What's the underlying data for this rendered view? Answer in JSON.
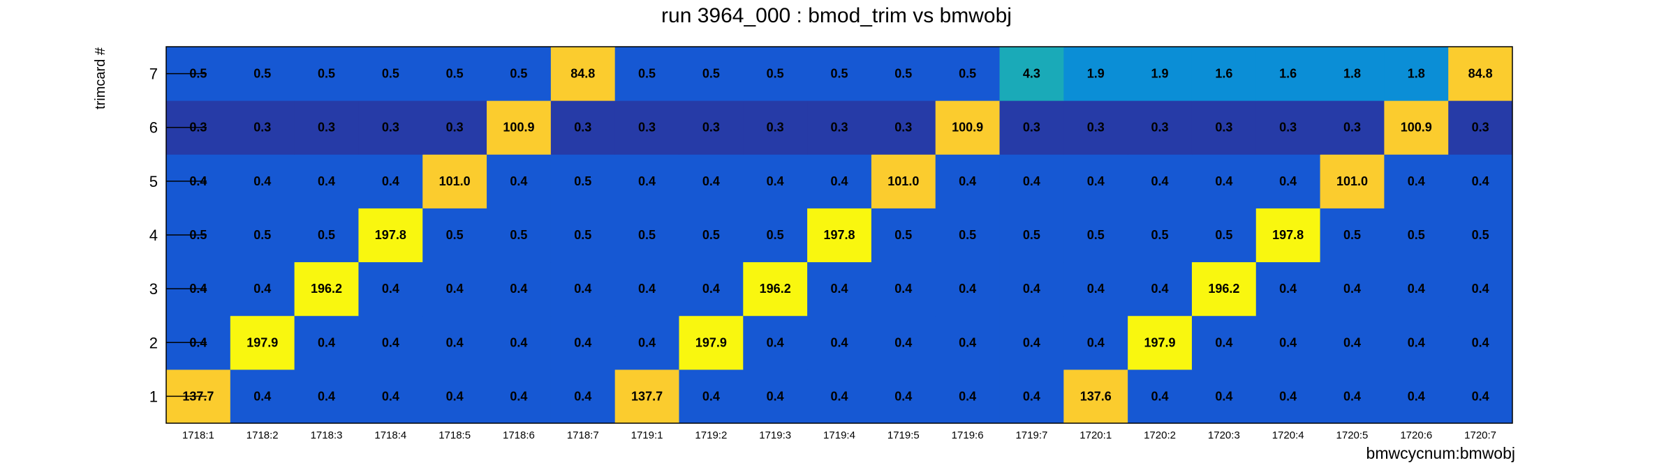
{
  "chart_data": {
    "type": "heatmap",
    "title": "run 3964_000 : bmod_trim vs bmwobj",
    "xlabel": "bmwcycnum:bmwobj",
    "ylabel": "trimcard #",
    "x": [
      "1718:1",
      "1718:2",
      "1718:3",
      "1718:4",
      "1718:5",
      "1718:6",
      "1718:7",
      "1719:1",
      "1719:2",
      "1719:3",
      "1719:4",
      "1719:5",
      "1719:6",
      "1719:7",
      "1720:1",
      "1720:2",
      "1720:3",
      "1720:4",
      "1720:5",
      "1720:6",
      "1720:7"
    ],
    "y": [
      "1",
      "2",
      "3",
      "4",
      "5",
      "6",
      "7"
    ],
    "values": [
      [
        137.7,
        0.4,
        0.4,
        0.4,
        0.4,
        0.4,
        0.4,
        137.7,
        0.4,
        0.4,
        0.4,
        0.4,
        0.4,
        0.4,
        137.6,
        0.4,
        0.4,
        0.4,
        0.4,
        0.4,
        0.4
      ],
      [
        0.4,
        197.9,
        0.4,
        0.4,
        0.4,
        0.4,
        0.4,
        0.4,
        197.9,
        0.4,
        0.4,
        0.4,
        0.4,
        0.4,
        0.4,
        197.9,
        0.4,
        0.4,
        0.4,
        0.4,
        0.4
      ],
      [
        0.4,
        0.4,
        196.2,
        0.4,
        0.4,
        0.4,
        0.4,
        0.4,
        0.4,
        196.2,
        0.4,
        0.4,
        0.4,
        0.4,
        0.4,
        0.4,
        196.2,
        0.4,
        0.4,
        0.4,
        0.4
      ],
      [
        0.5,
        0.5,
        0.5,
        197.8,
        0.5,
        0.5,
        0.5,
        0.5,
        0.5,
        0.5,
        197.8,
        0.5,
        0.5,
        0.5,
        0.5,
        0.5,
        0.5,
        197.8,
        0.5,
        0.5,
        0.5
      ],
      [
        0.4,
        0.4,
        0.4,
        0.4,
        101.0,
        0.4,
        0.5,
        0.4,
        0.4,
        0.4,
        0.4,
        101.0,
        0.4,
        0.4,
        0.4,
        0.4,
        0.4,
        0.4,
        101.0,
        0.4,
        0.4
      ],
      [
        0.3,
        0.3,
        0.3,
        0.3,
        0.3,
        100.9,
        0.3,
        0.3,
        0.3,
        0.3,
        0.3,
        0.3,
        100.9,
        0.3,
        0.3,
        0.3,
        0.3,
        0.3,
        0.3,
        100.9,
        0.3
      ],
      [
        0.5,
        0.5,
        0.5,
        0.5,
        0.5,
        0.5,
        84.8,
        0.5,
        0.5,
        0.5,
        0.5,
        0.5,
        0.5,
        4.3,
        1.9,
        1.9,
        1.6,
        1.6,
        1.8,
        1.8,
        84.8
      ]
    ],
    "value_format": "0.0",
    "colors": {
      "high": "#f9f70f",
      "warm": "#fbcc2e",
      "teal": "#1aaab8",
      "sky": "#0b8ed6",
      "mid_blue": "#1658d3",
      "deep_blue": "#263ba7"
    }
  }
}
